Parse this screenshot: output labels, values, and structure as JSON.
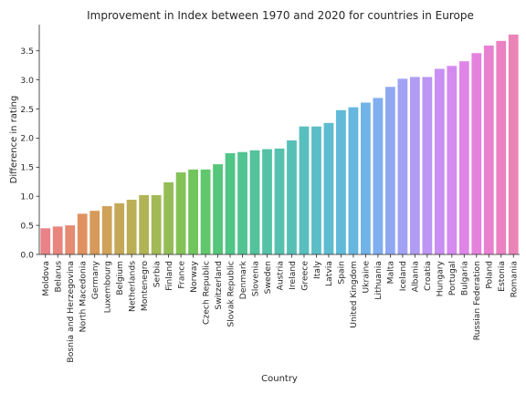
{
  "chart_data": {
    "type": "bar",
    "title": "Improvement in Index between 1970 and 2020 for countries in Europe",
    "xlabel": "Country",
    "ylabel": "Difference in rating",
    "ylim": [
      0,
      3.95
    ],
    "yticks": [
      0.0,
      0.5,
      1.0,
      1.5,
      2.0,
      2.5,
      3.0,
      3.5
    ],
    "ytick_labels": [
      "0.0",
      "0.5",
      "1.0",
      "1.5",
      "2.0",
      "2.5",
      "3.0",
      "3.5"
    ],
    "grid": false,
    "categories": [
      "Moldova",
      "Belarus",
      "Bosnia and Herzegovina",
      "North Macedonia",
      "Germany",
      "Luxembourg",
      "Belgium",
      "Netherlands",
      "Montenegro",
      "Serbia",
      "Finland",
      "France",
      "Norway",
      "Czech Republic",
      "Switzerland",
      "Slovak Republic",
      "Denmark",
      "Slovenia",
      "Sweden",
      "Austria",
      "Ireland",
      "Greece",
      "Italy",
      "Latvia",
      "Spain",
      "United Kingdom",
      "Ukraine",
      "Lithuania",
      "Malta",
      "Iceland",
      "Albania",
      "Croatia",
      "Hungary",
      "Portugal",
      "Bulgaria",
      "Russian Federation",
      "Poland",
      "Estonia",
      "Romania"
    ],
    "values": [
      0.45,
      0.48,
      0.5,
      0.7,
      0.75,
      0.83,
      0.88,
      0.94,
      1.02,
      1.02,
      1.24,
      1.41,
      1.46,
      1.46,
      1.55,
      1.74,
      1.76,
      1.79,
      1.81,
      1.82,
      1.96,
      2.2,
      2.2,
      2.26,
      2.48,
      2.53,
      2.61,
      2.69,
      2.88,
      3.02,
      3.05,
      3.05,
      3.19,
      3.24,
      3.32,
      3.46,
      3.59,
      3.67,
      3.78
    ],
    "colors": [
      "#e98286",
      "#e8857e",
      "#e58b72",
      "#df9161",
      "#d69a5a",
      "#cfa259",
      "#c5a857",
      "#bbae55",
      "#b0b355",
      "#a3b956",
      "#94bd57",
      "#84c256",
      "#72c55c",
      "#60c76c",
      "#55c67a",
      "#50c588",
      "#52c493",
      "#53c39d",
      "#55c2a6",
      "#56c1ae",
      "#57c0b6",
      "#59bfbe",
      "#5bbec6",
      "#5dbccf",
      "#60bad8",
      "#66b7e0",
      "#72b3e7",
      "#80aeee",
      "#90a8f2",
      "#a1a2f4",
      "#b09cf4",
      "#bd95f3",
      "#c98ff2",
      "#d58af0",
      "#df85e8",
      "#e582de",
      "#e881d0",
      "#ea82c2",
      "#eb84b6"
    ]
  }
}
